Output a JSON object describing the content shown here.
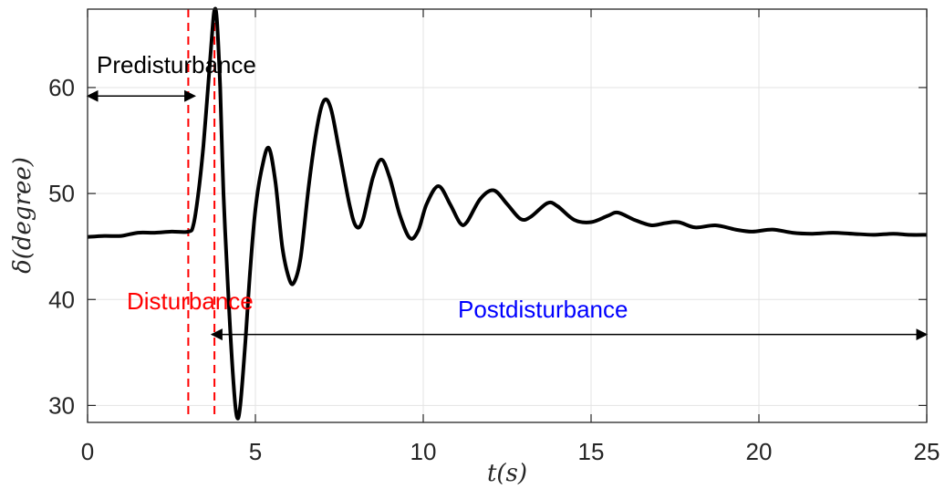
{
  "chart_data": {
    "type": "line",
    "title": "",
    "xlabel": "t(s)",
    "ylabel": "δ(degree)",
    "xlim": [
      0,
      25
    ],
    "ylim": [
      28.4,
      67.4
    ],
    "xticks": [
      0,
      5,
      10,
      15,
      20,
      25
    ],
    "yticks": [
      30,
      40,
      50,
      60
    ],
    "grid": true,
    "series": [
      {
        "color": "#000000",
        "points": [
          [
            0,
            45.9
          ],
          [
            0.5,
            46.0
          ],
          [
            1.0,
            46.0
          ],
          [
            1.5,
            46.3
          ],
          [
            2.0,
            46.3
          ],
          [
            2.5,
            46.4
          ],
          [
            3.0,
            46.4
          ],
          [
            3.15,
            47.0
          ],
          [
            3.3,
            50.0
          ],
          [
            3.45,
            54.5
          ],
          [
            3.6,
            60.5
          ],
          [
            3.72,
            65.5
          ],
          [
            3.78,
            67.3
          ],
          [
            3.85,
            66.5
          ],
          [
            3.95,
            60.0
          ],
          [
            4.05,
            50.0
          ],
          [
            4.2,
            40.0
          ],
          [
            4.35,
            32.0
          ],
          [
            4.45,
            28.9
          ],
          [
            4.55,
            30.0
          ],
          [
            4.7,
            36.0
          ],
          [
            4.85,
            43.0
          ],
          [
            5.0,
            48.5
          ],
          [
            5.2,
            52.5
          ],
          [
            5.4,
            54.3
          ],
          [
            5.6,
            51.0
          ],
          [
            5.8,
            45.0
          ],
          [
            6.0,
            42.0
          ],
          [
            6.15,
            41.6
          ],
          [
            6.35,
            44.0
          ],
          [
            6.6,
            51.0
          ],
          [
            6.85,
            56.5
          ],
          [
            7.05,
            58.8
          ],
          [
            7.25,
            58.0
          ],
          [
            7.5,
            54.0
          ],
          [
            7.8,
            49.0
          ],
          [
            8.0,
            46.9
          ],
          [
            8.2,
            47.5
          ],
          [
            8.5,
            51.5
          ],
          [
            8.75,
            53.2
          ],
          [
            9.0,
            51.5
          ],
          [
            9.3,
            48.0
          ],
          [
            9.6,
            45.8
          ],
          [
            9.85,
            46.5
          ],
          [
            10.1,
            49.0
          ],
          [
            10.45,
            50.7
          ],
          [
            10.8,
            49.0
          ],
          [
            11.1,
            47.2
          ],
          [
            11.3,
            47.3
          ],
          [
            11.7,
            49.5
          ],
          [
            12.1,
            50.3
          ],
          [
            12.5,
            49.0
          ],
          [
            12.9,
            47.6
          ],
          [
            13.2,
            47.8
          ],
          [
            13.7,
            49.1
          ],
          [
            14.0,
            48.8
          ],
          [
            14.5,
            47.5
          ],
          [
            15.0,
            47.3
          ],
          [
            15.5,
            47.9
          ],
          [
            15.8,
            48.2
          ],
          [
            16.3,
            47.5
          ],
          [
            16.8,
            47.0
          ],
          [
            17.2,
            47.2
          ],
          [
            17.6,
            47.3
          ],
          [
            18.1,
            46.8
          ],
          [
            18.7,
            47.0
          ],
          [
            19.3,
            46.6
          ],
          [
            19.8,
            46.4
          ],
          [
            20.4,
            46.6
          ],
          [
            21.0,
            46.3
          ],
          [
            21.6,
            46.2
          ],
          [
            22.2,
            46.3
          ],
          [
            22.8,
            46.2
          ],
          [
            23.4,
            46.1
          ],
          [
            24.0,
            46.2
          ],
          [
            24.5,
            46.1
          ],
          [
            25.0,
            46.1
          ]
        ]
      }
    ],
    "vlines": [
      {
        "x": 3.0,
        "color": "#ff0000",
        "style": "dashed"
      },
      {
        "x": 3.78,
        "color": "#ff0000",
        "style": "dashed"
      }
    ],
    "arrows": [
      {
        "from": [
          0,
          59.2
        ],
        "to": [
          3.2,
          59.2
        ],
        "color": "#000000",
        "heads": "both"
      },
      {
        "from": [
          3.7,
          36.7
        ],
        "to": [
          25.0,
          36.7
        ],
        "color": "#000000",
        "heads": "both"
      }
    ],
    "annotations": [
      {
        "text": "Predisturbance",
        "color": "#000000"
      },
      {
        "text": "Disturbance",
        "color": "#ff0000"
      },
      {
        "text": "Postdisturbance",
        "color": "#0000ff"
      }
    ]
  }
}
